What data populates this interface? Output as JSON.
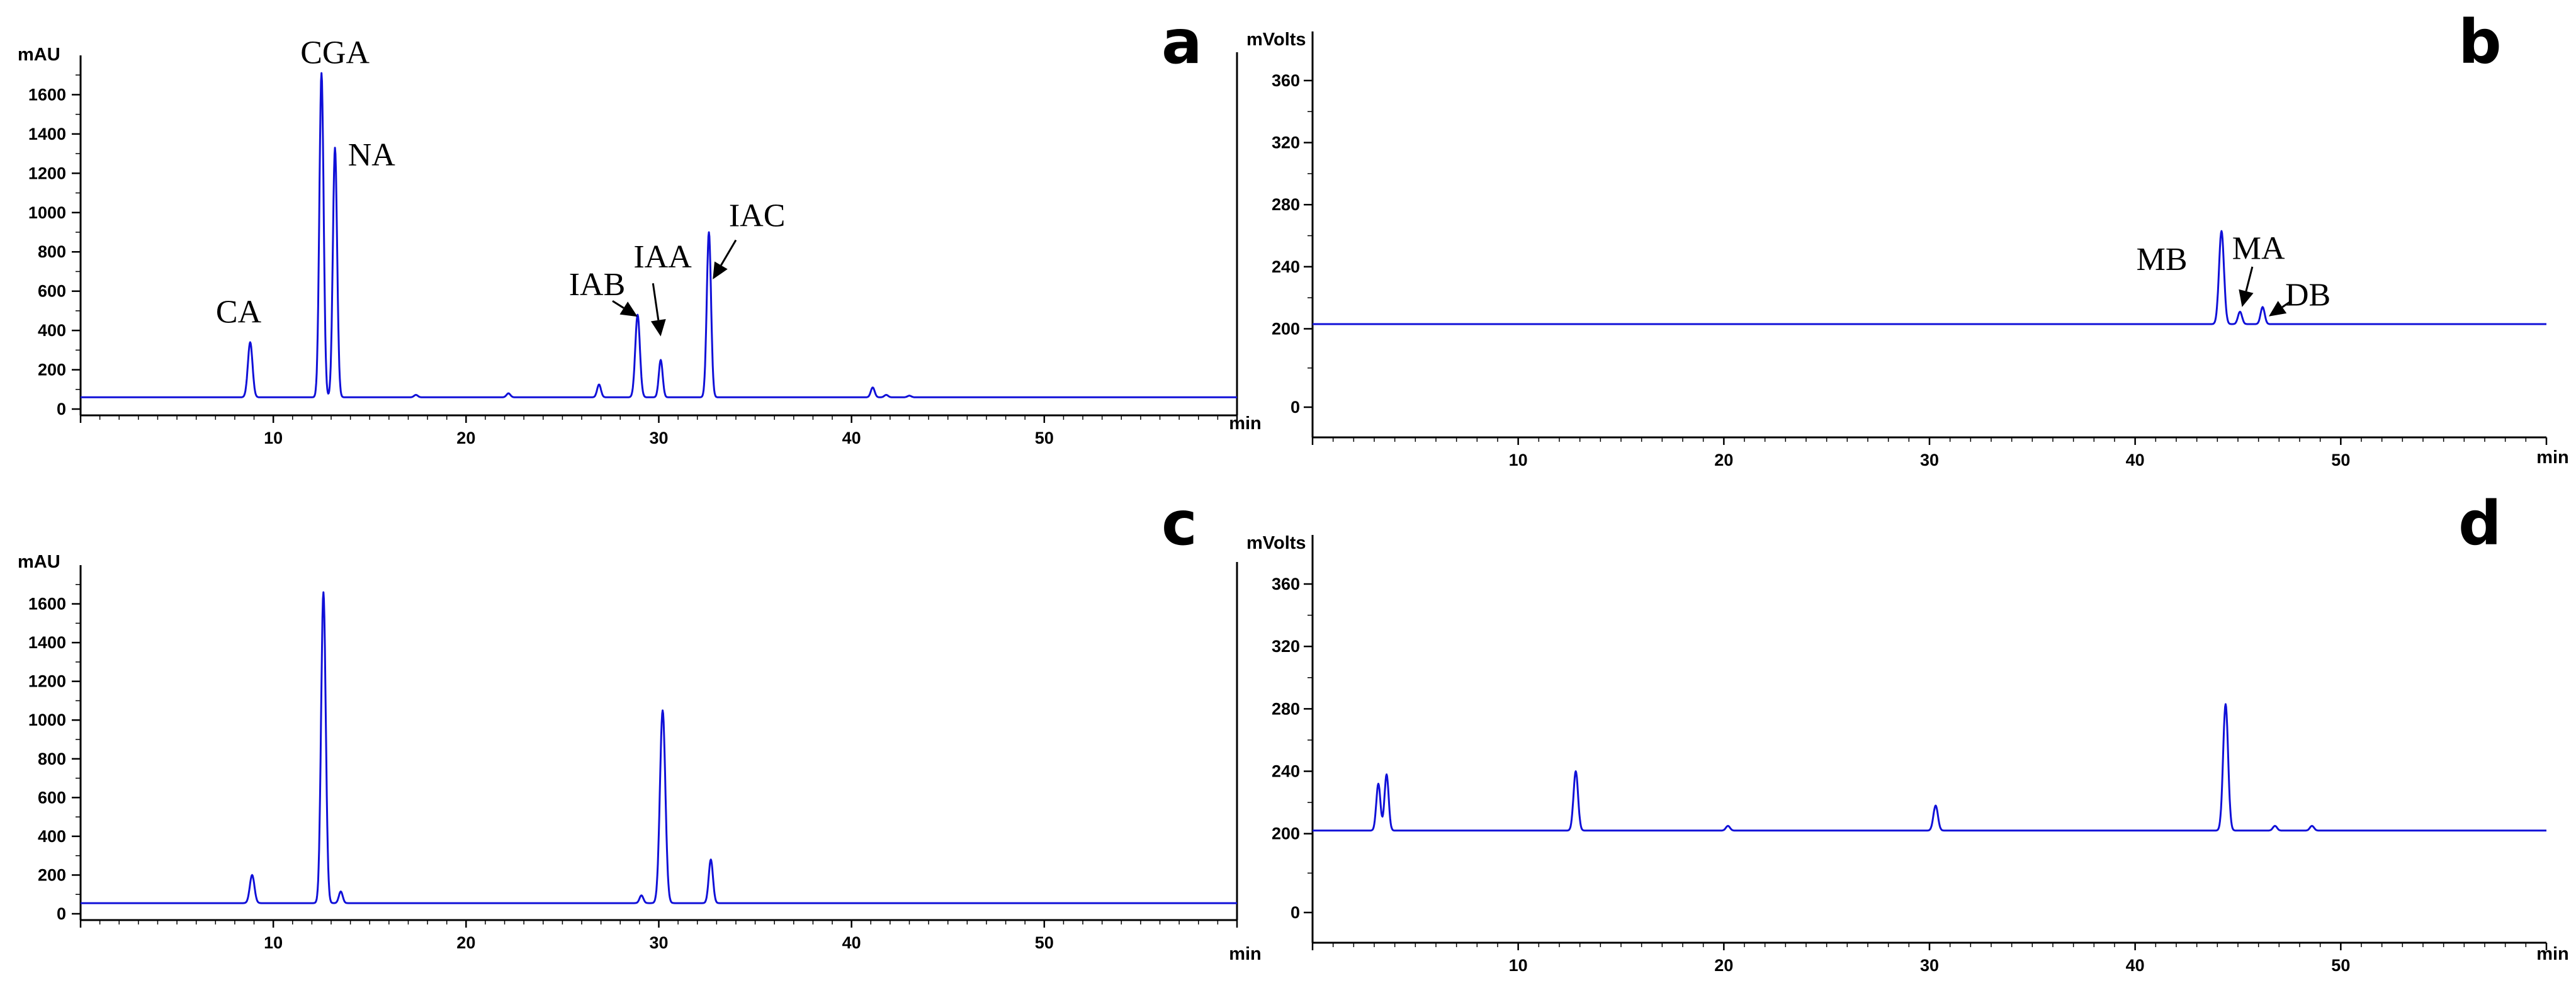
{
  "chart_data": [
    {
      "id": "a",
      "type": "line",
      "panel_label": "a",
      "ylabel": "mAU",
      "xlabel": "min",
      "xlim": [
        0,
        60
      ],
      "ylim": [
        0,
        1800
      ],
      "xticks": [
        10,
        20,
        30,
        40,
        50
      ],
      "yticks": [
        0,
        200,
        400,
        600,
        800,
        1000,
        1200,
        1400,
        1600
      ],
      "baseline": 60,
      "peaks": [
        {
          "x": 8.8,
          "y": 340,
          "w": 0.12
        },
        {
          "x": 12.5,
          "y": 1710,
          "w": 0.11
        },
        {
          "x": 13.2,
          "y": 1330,
          "w": 0.11
        },
        {
          "x": 17.4,
          "y": 72,
          "w": 0.1
        },
        {
          "x": 22.2,
          "y": 80,
          "w": 0.1
        },
        {
          "x": 26.9,
          "y": 125,
          "w": 0.1
        },
        {
          "x": 28.9,
          "y": 480,
          "w": 0.12
        },
        {
          "x": 30.1,
          "y": 250,
          "w": 0.1
        },
        {
          "x": 32.6,
          "y": 900,
          "w": 0.11
        },
        {
          "x": 41.1,
          "y": 110,
          "w": 0.1
        },
        {
          "x": 41.8,
          "y": 72,
          "w": 0.1
        },
        {
          "x": 43.0,
          "y": 68,
          "w": 0.1
        }
      ],
      "annotations": [
        {
          "text": "CA",
          "x": 8.2,
          "y": 440,
          "anchor": "middle"
        },
        {
          "text": "CGA",
          "x": 13.2,
          "y": 1760,
          "anchor": "middle"
        },
        {
          "text": "NA",
          "x": 15.1,
          "y": 1240,
          "anchor": "middle"
        },
        {
          "text": "IAB",
          "x": 26.8,
          "y": 580,
          "anchor": "middle",
          "arrow_to": [
            28.9,
            470
          ],
          "arrow_from": [
            27.6,
            550
          ]
        },
        {
          "text": "IAA",
          "x": 30.2,
          "y": 720,
          "anchor": "middle",
          "arrow_to": [
            30.1,
            370
          ],
          "arrow_from": [
            29.7,
            640
          ]
        },
        {
          "text": "IAC",
          "x": 35.1,
          "y": 930,
          "anchor": "middle",
          "arrow_to": [
            32.8,
            660
          ],
          "arrow_from": [
            34.0,
            860
          ]
        }
      ]
    },
    {
      "id": "b",
      "type": "line",
      "panel_label": "b",
      "ylabel": "mVolts",
      "xlabel": "min",
      "xlim": [
        0,
        60
      ],
      "ylim": [
        -10,
        370
      ],
      "xticks": [
        10,
        20,
        30,
        40,
        50
      ],
      "yticks": [
        0,
        40,
        80,
        120,
        160,
        200,
        240,
        280,
        320,
        360
      ],
      "ytick_labels": [
        "0",
        "200",
        "240",
        "280",
        "320",
        "360"
      ],
      "baseline": 203,
      "peaks": [
        {
          "x": 44.2,
          "y": 263,
          "w": 0.12
        },
        {
          "x": 45.1,
          "y": 211,
          "w": 0.1
        },
        {
          "x": 46.2,
          "y": 214,
          "w": 0.1
        }
      ],
      "annotations": [
        {
          "text": "MB",
          "x": 41.3,
          "y": 238,
          "anchor": "middle"
        },
        {
          "text": "MA",
          "x": 46.0,
          "y": 245,
          "anchor": "middle",
          "arrow_to": [
            45.2,
            214
          ],
          "arrow_from": [
            45.7,
            240
          ]
        },
        {
          "text": "DB",
          "x": 48.4,
          "y": 215,
          "anchor": "middle",
          "arrow_to": [
            46.5,
            208
          ],
          "arrow_from": [
            47.6,
            218
          ]
        }
      ]
    },
    {
      "id": "c",
      "type": "line",
      "panel_label": "c",
      "ylabel": "mAU",
      "xlabel": "min",
      "xlim": [
        0,
        60
      ],
      "ylim": [
        0,
        1800
      ],
      "xticks": [
        10,
        20,
        30,
        40,
        50
      ],
      "yticks": [
        0,
        200,
        400,
        600,
        800,
        1000,
        1200,
        1400,
        1600
      ],
      "baseline": 55,
      "peaks": [
        {
          "x": 8.9,
          "y": 200,
          "w": 0.12
        },
        {
          "x": 12.6,
          "y": 1660,
          "w": 0.12
        },
        {
          "x": 13.5,
          "y": 115,
          "w": 0.1
        },
        {
          "x": 29.1,
          "y": 95,
          "w": 0.1
        },
        {
          "x": 30.2,
          "y": 1050,
          "w": 0.14
        },
        {
          "x": 32.7,
          "y": 280,
          "w": 0.11
        }
      ],
      "annotations": []
    },
    {
      "id": "d",
      "type": "line",
      "panel_label": "d",
      "ylabel": "mVolts",
      "xlabel": "min",
      "xlim": [
        0,
        60
      ],
      "ylim": [
        -10,
        370
      ],
      "xticks": [
        10,
        20,
        30,
        40,
        50
      ],
      "yticks": [
        0,
        40,
        80,
        120,
        160,
        200,
        240,
        280,
        320,
        360
      ],
      "ytick_labels": [
        "0",
        "200",
        "240",
        "280",
        "320",
        "360"
      ],
      "baseline": 202,
      "peaks": [
        {
          "x": 3.2,
          "y": 232,
          "w": 0.1
        },
        {
          "x": 3.6,
          "y": 238,
          "w": 0.1
        },
        {
          "x": 12.8,
          "y": 240,
          "w": 0.11
        },
        {
          "x": 20.2,
          "y": 205,
          "w": 0.1
        },
        {
          "x": 30.3,
          "y": 218,
          "w": 0.11
        },
        {
          "x": 44.4,
          "y": 283,
          "w": 0.12
        },
        {
          "x": 46.8,
          "y": 205,
          "w": 0.1
        },
        {
          "x": 48.6,
          "y": 205,
          "w": 0.1
        }
      ],
      "annotations": []
    }
  ]
}
